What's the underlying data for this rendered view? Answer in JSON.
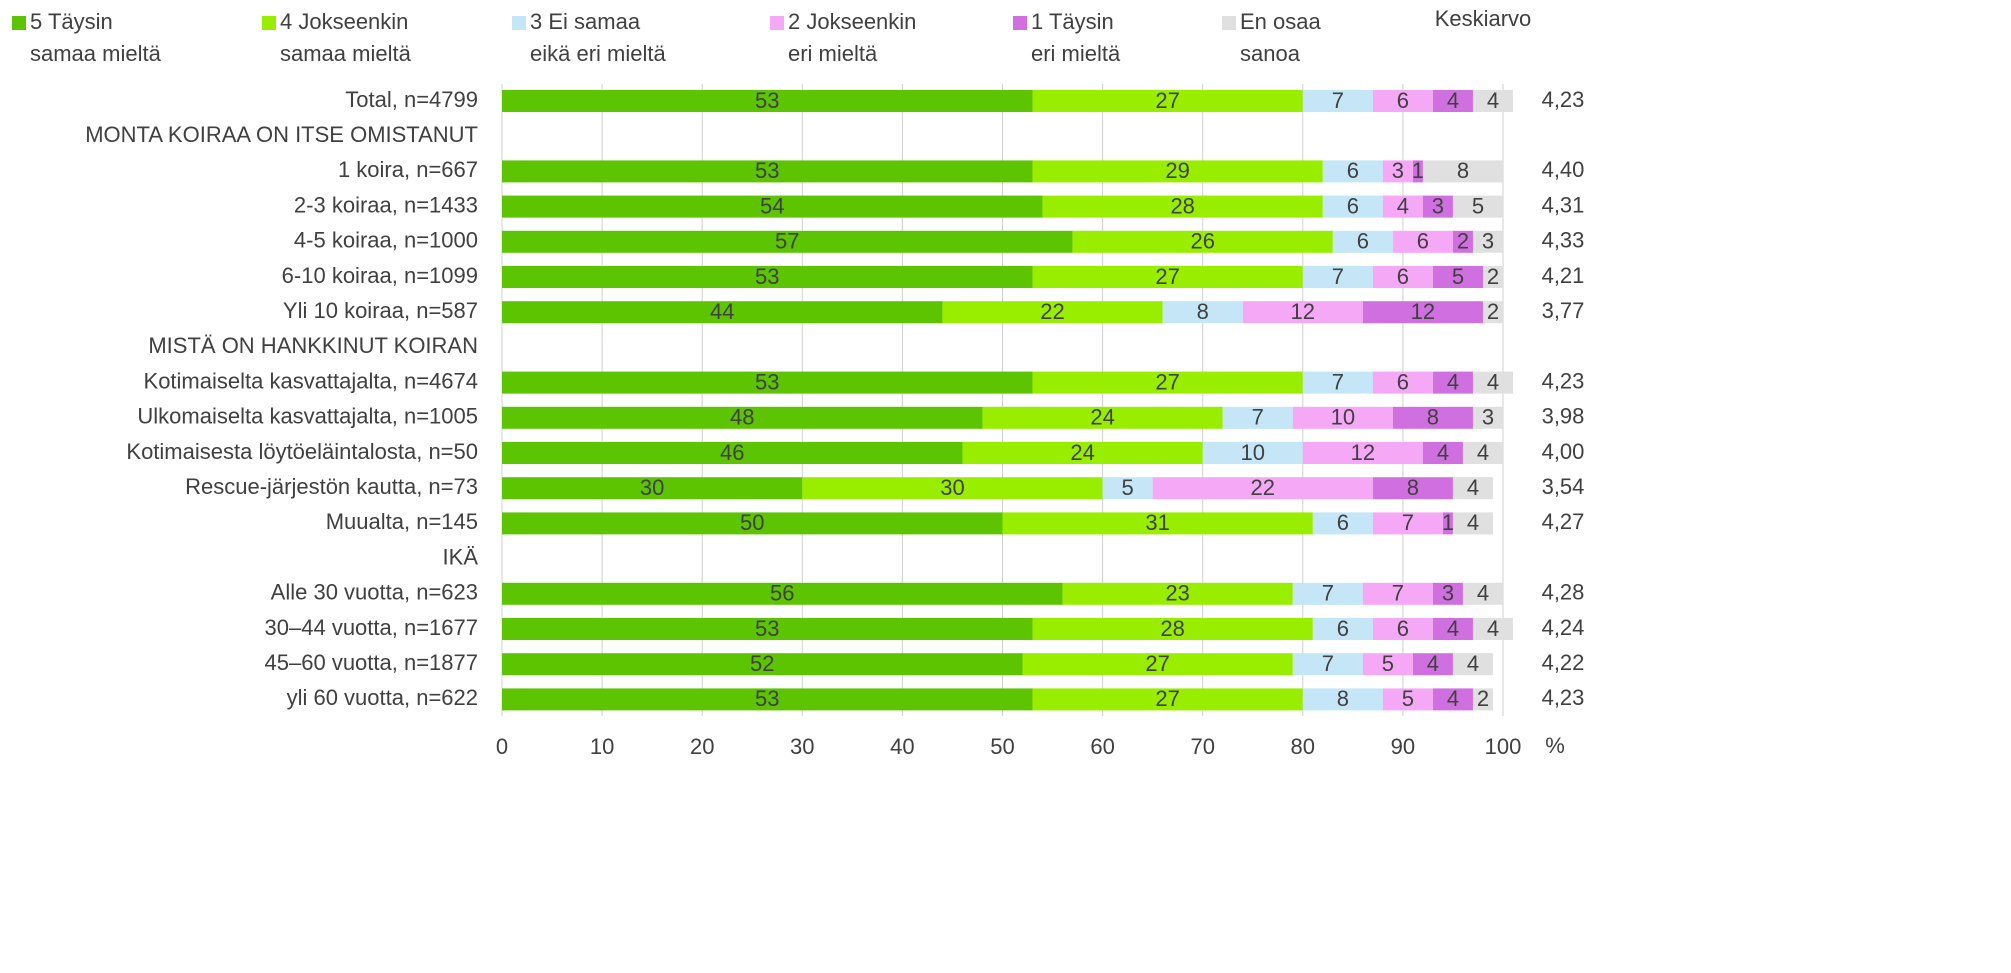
{
  "chart_data": {
    "type": "stacked_bar_horizontal",
    "categories": [
      "Total, n=4799",
      "MONTA KOIRAA ON ITSE OMISTANUT",
      "1 koira, n=667",
      "2-3 koiraa, n=1433",
      "4-5 koiraa, n=1000",
      "6-10 koiraa, n=1099",
      "Yli 10 koiraa, n=587",
      "MISTÄ ON HANKKINUT KOIRAN",
      "Kotimaiselta kasvattajalta, n=4674",
      "Ulkomaiselta kasvattajalta, n=1005",
      "Kotimaisesta löytöeläintalosta, n=50",
      "Rescue-järjestön kautta, n=73",
      "Muualta, n=145",
      "IKÄ",
      "Alle 30 vuotta, n=623",
      "30–44 vuotta, n=1677",
      "45–60 vuotta, n=1877",
      "yli 60 vuotta, n=622"
    ],
    "series": [
      {
        "name": "5 Täysin\nsamaa mieltä",
        "color": "#5cc400",
        "values": [
          53,
          null,
          53,
          54,
          57,
          53,
          44,
          null,
          53,
          48,
          46,
          30,
          50,
          null,
          56,
          53,
          52,
          53
        ]
      },
      {
        "name": "4 Jokseenkin\nsamaa mieltä",
        "color": "#99ee00",
        "values": [
          27,
          null,
          29,
          28,
          26,
          27,
          22,
          null,
          27,
          24,
          24,
          30,
          31,
          null,
          23,
          28,
          27,
          27
        ]
      },
      {
        "name": "3 Ei samaa\neikä eri mieltä",
        "color": "#c5e6f7",
        "values": [
          7,
          null,
          6,
          6,
          6,
          7,
          8,
          null,
          7,
          7,
          10,
          5,
          6,
          null,
          7,
          6,
          7,
          8
        ]
      },
      {
        "name": "2 Jokseenkin\neri mieltä",
        "color": "#f5a8f5",
        "values": [
          6,
          null,
          3,
          4,
          6,
          6,
          12,
          null,
          6,
          10,
          12,
          22,
          7,
          null,
          7,
          6,
          5,
          5
        ]
      },
      {
        "name": "1 Täysin\neri mieltä",
        "color": "#d070e0",
        "values": [
          4,
          null,
          1,
          3,
          2,
          5,
          12,
          null,
          4,
          8,
          4,
          8,
          1,
          null,
          3,
          4,
          4,
          4
        ]
      },
      {
        "name": "En osaa\nsanoa",
        "color": "#e0e0e0",
        "values": [
          4,
          null,
          8,
          5,
          3,
          2,
          2,
          null,
          4,
          3,
          4,
          4,
          4,
          null,
          4,
          4,
          4,
          2
        ]
      }
    ],
    "mean": {
      "name": "Keskiarvo",
      "values": [
        4.23,
        null,
        4.4,
        4.31,
        4.33,
        4.21,
        3.77,
        null,
        4.23,
        3.98,
        4.0,
        3.54,
        4.27,
        null,
        4.28,
        4.24,
        4.22,
        4.23
      ],
      "value_labels": [
        "4,23",
        null,
        "4,40",
        "4,31",
        "4,33",
        "4,21",
        "3,77",
        null,
        "4,23",
        "3,98",
        "4,00",
        "3,54",
        "4,27",
        null,
        "4,28",
        "4,24",
        "4,22",
        "4,23"
      ]
    },
    "x_label": "%",
    "xlim": [
      0,
      100
    ],
    "xticks": [
      0,
      10,
      20,
      30,
      40,
      50,
      60,
      70,
      80,
      90,
      100
    ],
    "grid": true
  }
}
